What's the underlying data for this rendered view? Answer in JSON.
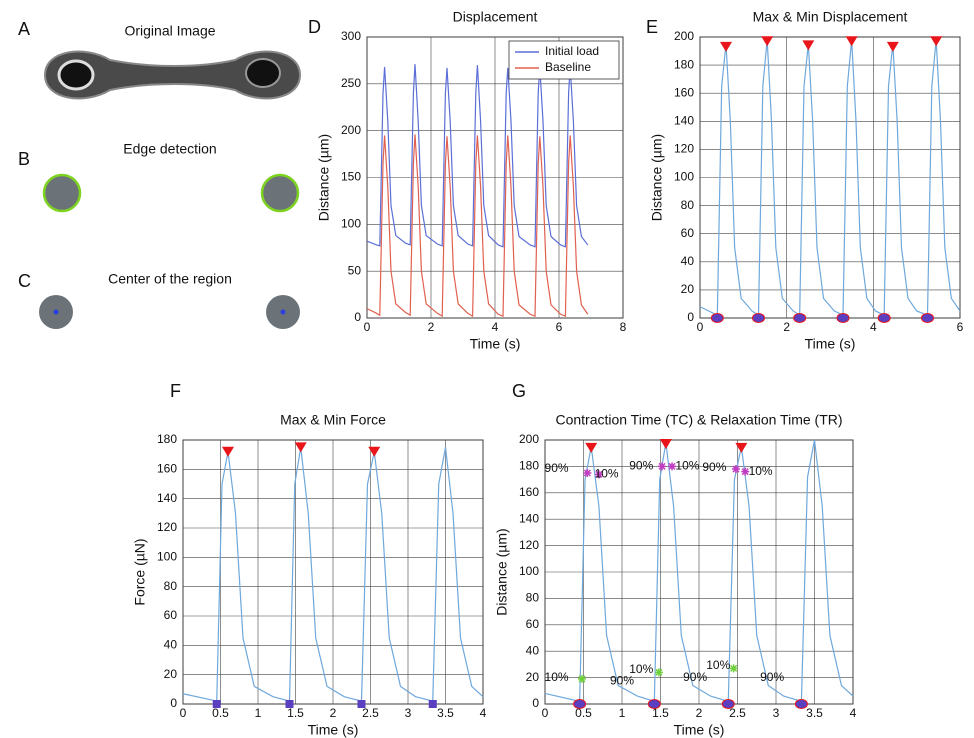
{
  "images": [
    {
      "letter": "A",
      "title": "Original Image"
    },
    {
      "letter": "B",
      "title": "Edge detection"
    },
    {
      "letter": "C",
      "title": "Center of the region"
    }
  ],
  "chart_data": [
    {
      "type": "line",
      "panel": "D",
      "title": "Displacement",
      "xlabel": "Time (s)",
      "ylabel": "Distance (µm)",
      "xlim": [
        0,
        8
      ],
      "ylim": [
        0,
        300
      ],
      "xticks": [
        0,
        2,
        4,
        6,
        8
      ],
      "yticks": [
        0,
        50,
        100,
        150,
        200,
        250,
        300
      ],
      "grid": true,
      "legend": "upper right",
      "x": [
        0,
        0.3,
        0.4,
        0.5,
        0.55,
        0.65,
        0.75,
        0.9,
        1.2,
        1.35,
        1.45,
        1.5,
        1.6,
        1.7,
        1.85,
        2.2,
        2.35,
        2.45,
        2.5,
        2.6,
        2.7,
        2.85,
        3.15,
        3.3,
        3.4,
        3.45,
        3.55,
        3.65,
        3.8,
        4.1,
        4.25,
        4.35,
        4.4,
        4.5,
        4.6,
        4.75,
        5.1,
        5.25,
        5.35,
        5.4,
        5.5,
        5.6,
        5.75,
        6.05,
        6.2,
        6.3,
        6.35,
        6.45,
        6.55,
        6.7,
        6.9
      ],
      "series": [
        {
          "name": "Initial load",
          "color": "#5b6fd6",
          "values": [
            82,
            78,
            77,
            240,
            268,
            210,
            120,
            88,
            80,
            78,
            240,
            271,
            210,
            120,
            88,
            79,
            77,
            240,
            267,
            210,
            120,
            88,
            79,
            77,
            240,
            270,
            210,
            120,
            88,
            78,
            76,
            240,
            267,
            210,
            120,
            87,
            78,
            76,
            240,
            268,
            210,
            120,
            87,
            78,
            76,
            240,
            268,
            210,
            120,
            87,
            78
          ]
        },
        {
          "name": "Baseline",
          "color": "#e0604f",
          "values": [
            10,
            5,
            3,
            165,
            195,
            140,
            50,
            15,
            6,
            3,
            165,
            196,
            140,
            50,
            15,
            5,
            2,
            165,
            194,
            140,
            50,
            15,
            5,
            2,
            165,
            195,
            140,
            50,
            15,
            4,
            2,
            165,
            195,
            140,
            50,
            14,
            4,
            2,
            165,
            194,
            140,
            50,
            14,
            4,
            2,
            165,
            195,
            140,
            50,
            14,
            4
          ]
        }
      ]
    },
    {
      "type": "line",
      "panel": "E",
      "title": "Max & Min Displacement",
      "xlabel": "Time (s)",
      "ylabel": "Distance (µm)",
      "xlim": [
        0,
        6
      ],
      "ylim": [
        0,
        200
      ],
      "xticks": [
        0,
        2,
        4,
        6
      ],
      "yticks": [
        0,
        20,
        40,
        60,
        80,
        100,
        120,
        140,
        160,
        180,
        200
      ],
      "grid": true,
      "series": [
        {
          "color": "#6fa8dc",
          "x": [
            0,
            0.4,
            0.5,
            0.6,
            0.7,
            0.8,
            0.95,
            1.2,
            1.35,
            1.45,
            1.55,
            1.65,
            1.75,
            1.9,
            2.15,
            2.3,
            2.4,
            2.5,
            2.6,
            2.7,
            2.85,
            3.1,
            3.3,
            3.4,
            3.5,
            3.6,
            3.7,
            3.85,
            4.05,
            4.25,
            4.35,
            4.45,
            4.55,
            4.65,
            4.8,
            5.0,
            5.25,
            5.35,
            5.45,
            5.55,
            5.65,
            5.8,
            6.0
          ],
          "values": [
            8,
            2,
            165,
            195,
            140,
            50,
            14,
            5,
            2,
            165,
            198,
            140,
            50,
            14,
            5,
            2,
            165,
            195,
            140,
            50,
            14,
            5,
            2,
            165,
            198,
            140,
            50,
            14,
            5,
            2,
            165,
            195,
            140,
            50,
            14,
            5,
            2,
            165,
            198,
            140,
            50,
            14,
            5
          ]
        },
        {
          "marker": "triangle",
          "color": "#e8151b",
          "x": [
            0.6,
            1.55,
            2.5,
            3.5,
            4.45,
            5.45
          ],
          "values": [
            193,
            197,
            194,
            197,
            193,
            197
          ]
        },
        {
          "marker": "circle",
          "color": "#5a3fc0",
          "x": [
            0.4,
            1.35,
            2.3,
            3.3,
            4.25,
            5.25
          ],
          "values": [
            0,
            0,
            0,
            0,
            0,
            0
          ]
        }
      ]
    },
    {
      "type": "line",
      "panel": "F",
      "title": "Max & Min Force",
      "xlabel": "Time (s)",
      "ylabel": "Force (µN)",
      "xlim": [
        0,
        4
      ],
      "ylim": [
        0,
        180
      ],
      "xticks": [
        0,
        0.5,
        1,
        1.5,
        2,
        2.5,
        3,
        3.5,
        4
      ],
      "yticks": [
        0,
        20,
        40,
        60,
        80,
        100,
        120,
        140,
        160,
        180
      ],
      "grid": true,
      "x": [
        0,
        0.45,
        0.52,
        0.6,
        0.7,
        0.8,
        0.95,
        1.2,
        1.42,
        1.49,
        1.57,
        1.67,
        1.77,
        1.92,
        2.15,
        2.38,
        2.46,
        2.55,
        2.65,
        2.75,
        2.9,
        3.1,
        3.33,
        3.41,
        3.5,
        3.6,
        3.7,
        3.85,
        4.0
      ],
      "series": [
        {
          "color": "#6fa8dc",
          "values": [
            7,
            2,
            150,
            172,
            130,
            45,
            12,
            5,
            2,
            150,
            175,
            130,
            45,
            12,
            5,
            2,
            150,
            172,
            130,
            45,
            12,
            5,
            2,
            150,
            175,
            130,
            45,
            12,
            5
          ]
        },
        {
          "marker": "triangle",
          "color": "#e8151b",
          "x": [
            0.6,
            1.57,
            2.55
          ],
          "values": [
            172,
            175,
            172
          ]
        },
        {
          "marker": "square",
          "color": "#5a3fc0",
          "x": [
            0.45,
            1.42,
            2.38,
            3.33
          ],
          "values": [
            0,
            0,
            0,
            0
          ]
        }
      ]
    },
    {
      "type": "line",
      "panel": "G",
      "title": "Contraction Time (TC) & Relaxation Time (TR)",
      "xlabel": "Time (s)",
      "ylabel": "Distance (µm)",
      "xlim": [
        0,
        4
      ],
      "ylim": [
        0,
        200
      ],
      "xticks": [
        0,
        0.5,
        1,
        1.5,
        2,
        2.5,
        3,
        3.5,
        4
      ],
      "yticks": [
        0,
        20,
        40,
        60,
        80,
        100,
        120,
        140,
        160,
        180,
        200
      ],
      "grid": true,
      "x": [
        0,
        0.45,
        0.52,
        0.6,
        0.7,
        0.8,
        0.95,
        1.2,
        1.42,
        1.49,
        1.57,
        1.67,
        1.77,
        1.92,
        2.15,
        2.38,
        2.46,
        2.55,
        2.65,
        2.75,
        2.9,
        3.1,
        3.33,
        3.41,
        3.5,
        3.6,
        3.7,
        3.85,
        4.0
      ],
      "series": [
        {
          "color": "#6fa8dc",
          "values": [
            8,
            2,
            170,
            195,
            150,
            52,
            14,
            6,
            2,
            170,
            198,
            150,
            52,
            14,
            6,
            2,
            170,
            195,
            150,
            52,
            14,
            6,
            2,
            172,
            200,
            150,
            52,
            14,
            6
          ]
        },
        {
          "marker": "triangle",
          "color": "#e8151b",
          "x": [
            0.6,
            1.57,
            2.55
          ],
          "values": [
            194,
            197,
            194
          ]
        },
        {
          "marker": "circle",
          "color": "#5a3fc0",
          "x": [
            0.45,
            1.42,
            2.38,
            3.33
          ],
          "values": [
            0,
            0,
            0,
            0
          ]
        },
        {
          "marker": "star",
          "color": "#c03cc0",
          "x": [
            0.55,
            0.7,
            1.52,
            1.65,
            2.48,
            2.6
          ],
          "values": [
            175,
            174,
            180,
            180,
            178,
            176
          ]
        },
        {
          "marker": "star",
          "color": "#6fcf3c",
          "x": [
            0.48,
            1.48,
            2.45
          ],
          "values": [
            19,
            24,
            27
          ]
        }
      ],
      "annotations": [
        {
          "text": "90%",
          "x": 0.15,
          "y": 178
        },
        {
          "text": "10%",
          "x": 0.8,
          "y": 174
        },
        {
          "text": "90%",
          "x": 1.25,
          "y": 180
        },
        {
          "text": "10%",
          "x": 1.85,
          "y": 180
        },
        {
          "text": "90%",
          "x": 2.2,
          "y": 179
        },
        {
          "text": "10%",
          "x": 2.8,
          "y": 176
        },
        {
          "text": "10%",
          "x": 0.15,
          "y": 20
        },
        {
          "text": "90%",
          "x": 1.0,
          "y": 17
        },
        {
          "text": "10%",
          "x": 1.25,
          "y": 26
        },
        {
          "text": "90%",
          "x": 1.95,
          "y": 20
        },
        {
          "text": "10%",
          "x": 2.25,
          "y": 29
        },
        {
          "text": "90%",
          "x": 2.95,
          "y": 20
        }
      ]
    }
  ]
}
